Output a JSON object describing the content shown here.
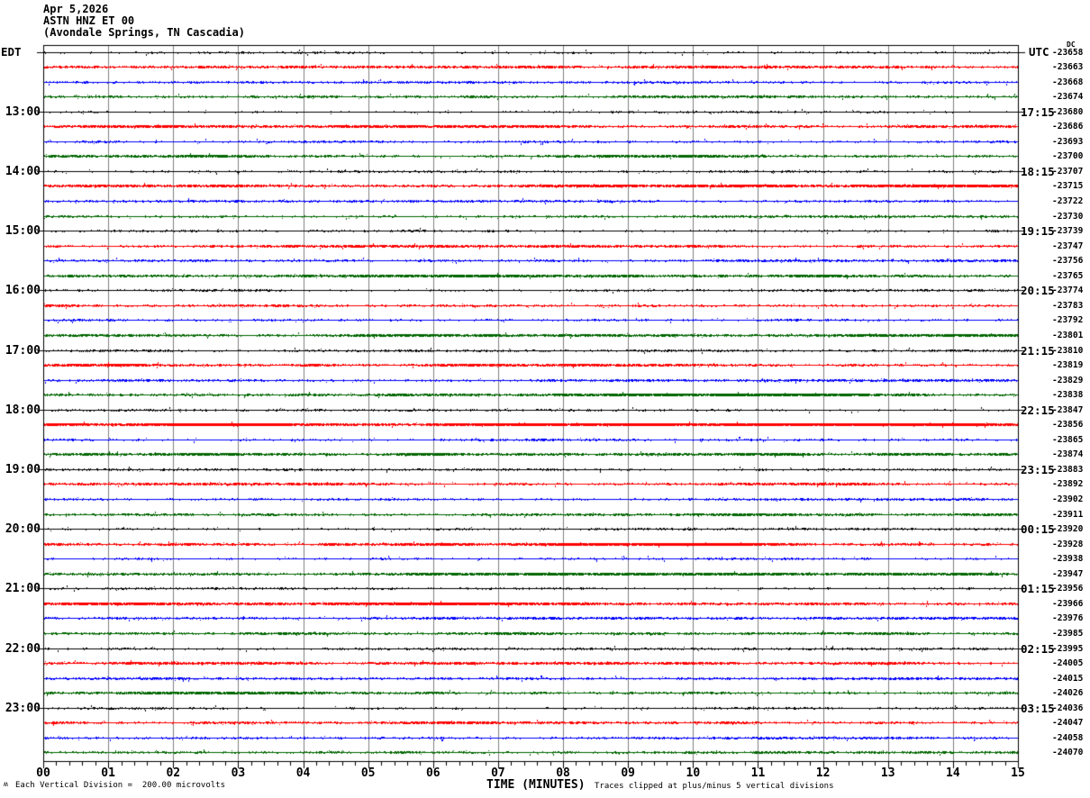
{
  "header": {
    "date": "Apr 5,2026",
    "station": "ASTN HNZ ET 00",
    "location": "(Avondale Springs, TN Cascadia)"
  },
  "left_axis": {
    "label": "EDT",
    "hour_labels": [
      "13:00",
      "14:00",
      "15:00",
      "16:00",
      "17:00",
      "18:00",
      "19:00",
      "20:00",
      "21:00",
      "22:00",
      "23:00"
    ]
  },
  "right_axis": {
    "label": "UTC",
    "dc_label": "DC",
    "hour_labels": [
      "17:15",
      "18:15",
      "19:15",
      "20:15",
      "21:15",
      "22:15",
      "23:15",
      "00:15",
      "01:15",
      "02:15",
      "03:15"
    ],
    "trace_dc_offsets": [
      -23658,
      -23663,
      -23668,
      -23674,
      -23680,
      -23686,
      -23693,
      -23700,
      -23707,
      -23715,
      -23722,
      -23730,
      -23739,
      -23747,
      -23756,
      -23765,
      -23774,
      -23783,
      -23792,
      -23801,
      -23810,
      -23819,
      -23829,
      -23838,
      -23847,
      -23856,
      -23865,
      -23874,
      -23883,
      -23892,
      -23902,
      -23911,
      -23920,
      -23928,
      -23938,
      -23947,
      -23956,
      -23966,
      -23976,
      -23985,
      -23995,
      -24005,
      -24015,
      -24026,
      -24036,
      -24047,
      -24058,
      -24070
    ]
  },
  "x_axis": {
    "tick_labels": [
      "00",
      "01",
      "02",
      "03",
      "04",
      "05",
      "06",
      "07",
      "08",
      "09",
      "10",
      "11",
      "12",
      "13",
      "14",
      "15"
    ],
    "label": "TIME (MINUTES)"
  },
  "footer": {
    "scale_note": "Each Vertical Division =  200.00 microvolts",
    "clip_note": "Traces clipped at plus/minus 5 vertical divisions",
    "corner_mark": "ʍ"
  },
  "colors": {
    "trace_cycle": [
      "#000000",
      "#ff0000",
      "#0000ff",
      "#006600"
    ],
    "grid": "#808080",
    "frame": "#000000",
    "background": "#ffffff"
  },
  "chart_data": {
    "type": "line",
    "subtype": "helicorder-seismogram",
    "title": "ASTN HNZ ET 00 (Avondale Springs, TN Cascadia) Apr 5,2026",
    "xlabel": "TIME (MINUTES)",
    "x_range_minutes": [
      0,
      15
    ],
    "x_tick_labels": [
      "00",
      "01",
      "02",
      "03",
      "04",
      "05",
      "06",
      "07",
      "08",
      "09",
      "10",
      "11",
      "12",
      "13",
      "14",
      "15"
    ],
    "minor_ticks_per_minute": 5,
    "rows": 48,
    "minutes_per_row": 15,
    "row_color_cycle": [
      "black",
      "red",
      "blue",
      "green"
    ],
    "rows_per_hour": 4,
    "local_time_row_labels_edt": [
      "13:00",
      "14:00",
      "15:00",
      "16:00",
      "17:00",
      "18:00",
      "19:00",
      "20:00",
      "21:00",
      "22:00",
      "23:00"
    ],
    "utc_time_row_labels": [
      "17:15",
      "18:15",
      "19:15",
      "20:15",
      "21:15",
      "22:15",
      "23:15",
      "00:15",
      "01:15",
      "02:15",
      "03:15"
    ],
    "row_dc_offsets_microvolts": [
      -23658,
      -23663,
      -23668,
      -23674,
      -23680,
      -23686,
      -23693,
      -23700,
      -23707,
      -23715,
      -23722,
      -23730,
      -23739,
      -23747,
      -23756,
      -23765,
      -23774,
      -23783,
      -23792,
      -23801,
      -23810,
      -23819,
      -23829,
      -23838,
      -23847,
      -23856,
      -23865,
      -23874,
      -23883,
      -23892,
      -23902,
      -23911,
      -23920,
      -23928,
      -23938,
      -23947,
      -23956,
      -23966,
      -23976,
      -23985,
      -23995,
      -24005,
      -24015,
      -24026,
      -24036,
      -24047,
      -24058,
      -24070
    ],
    "vertical_division_scale": "200.00 microvolts",
    "clipping": "plus/minus 5 vertical divisions",
    "waveform_summary": "48 flat background-noise traces, no visible seismic events; red and green rows show denser noise fuzz than black and blue rows",
    "grid": "vertical gray line each minute",
    "legend_position": "none"
  }
}
